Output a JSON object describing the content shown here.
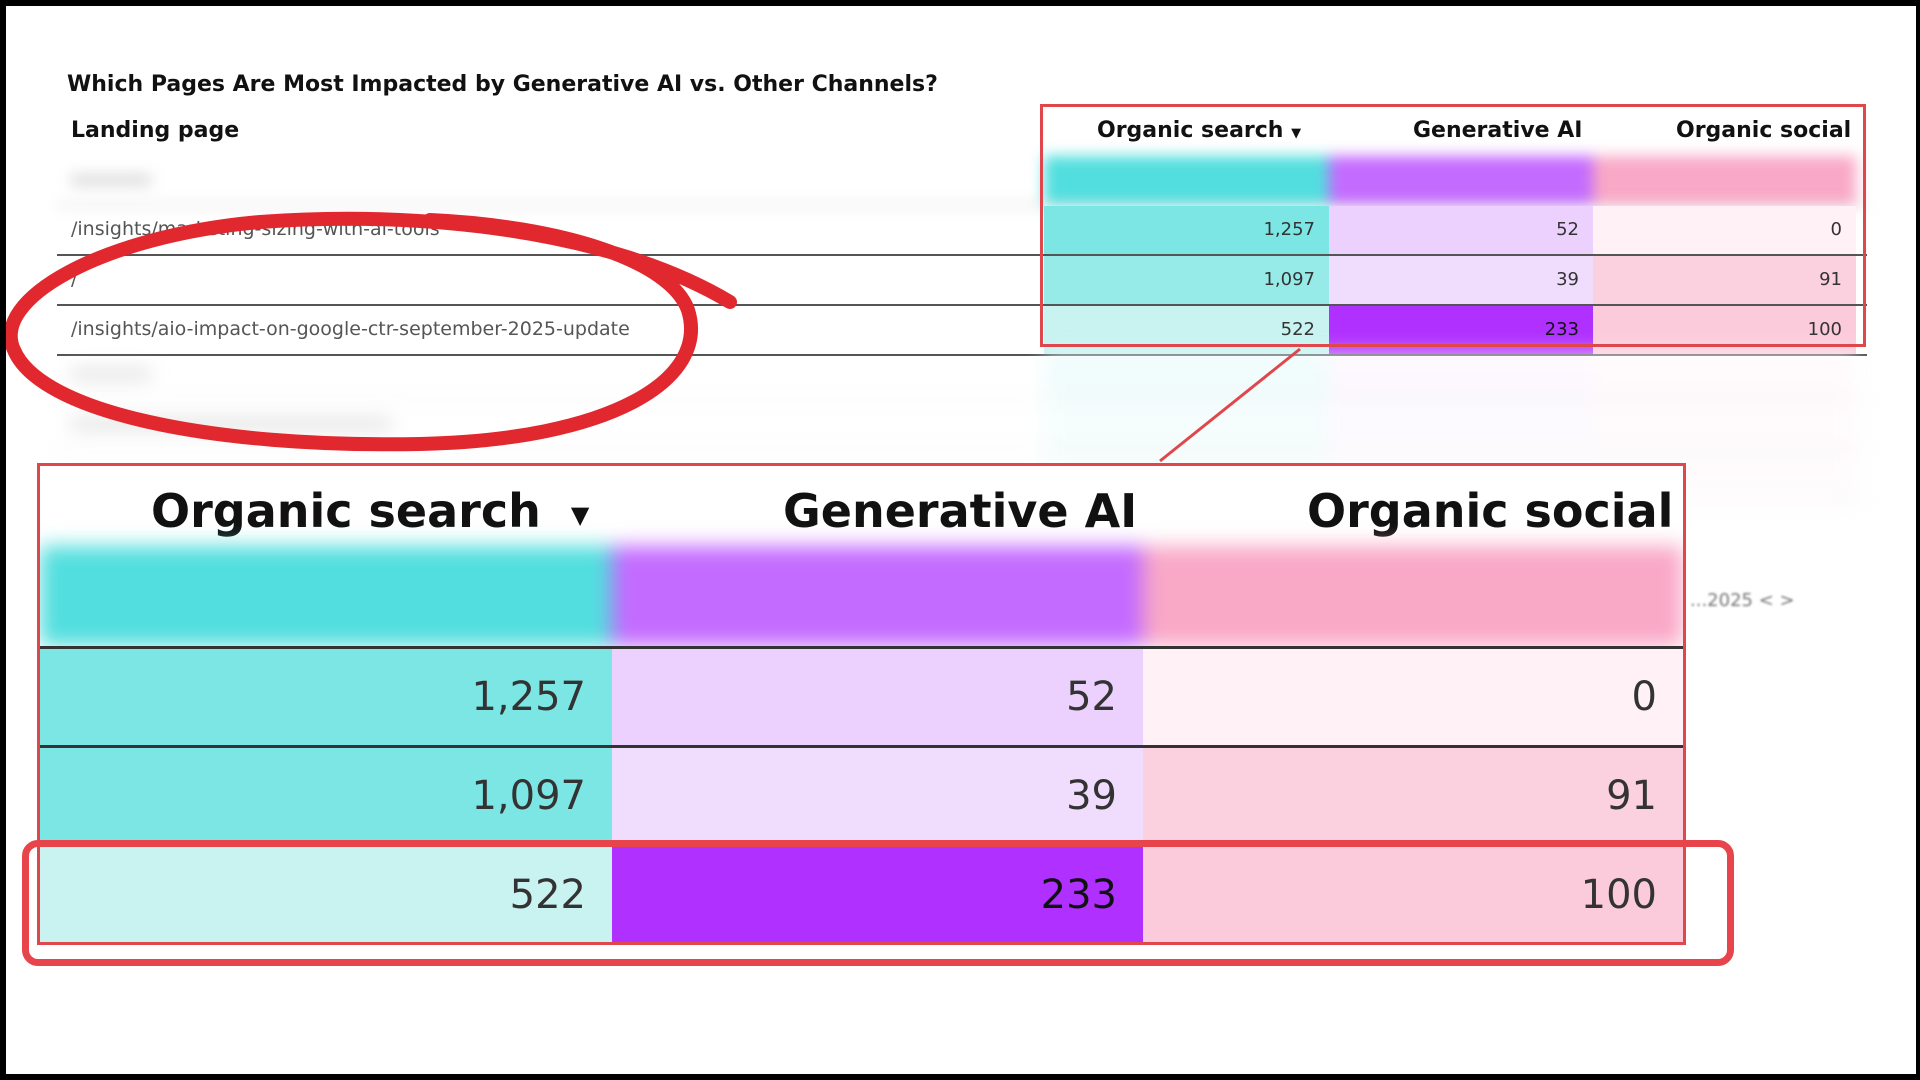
{
  "title": "Which Pages Are Most Impacted by Generative AI vs. Other Channels?",
  "table": {
    "col_page": "Landing page",
    "col_organic": "Organic search",
    "col_genai": "Generative AI",
    "col_social": "Organic social",
    "sort_icon": "▼",
    "rows": [
      {
        "page": "/insights/marketing-sizing-with-ai-tools",
        "organic": "1,257",
        "genai": "52",
        "social": "0"
      },
      {
        "page": "/",
        "organic": "1,097",
        "genai": "39",
        "social": "91"
      },
      {
        "page": "/insights/aio-impact-on-google-ctr-september-2025-update",
        "organic": "522",
        "genai": "233",
        "social": "100"
      }
    ]
  },
  "colors": {
    "organic_header": "#52dede",
    "organic_r1": "#7ce6e5",
    "organic_r2": "#96ebe8",
    "organic_r3": "#c8f3f1",
    "genai_header": "#c46bff",
    "genai_r1": "#ecd0fd",
    "genai_r2": "#f0dcfd",
    "genai_r3": "#b030ff",
    "social_header": "#f9a8c6",
    "social_r1": "#fff1f5",
    "social_r2": "#fbd0df",
    "social_r3": "#fbcbdb",
    "highlight_red": "#e0474c"
  },
  "pager_text": "...2025  <  >"
}
